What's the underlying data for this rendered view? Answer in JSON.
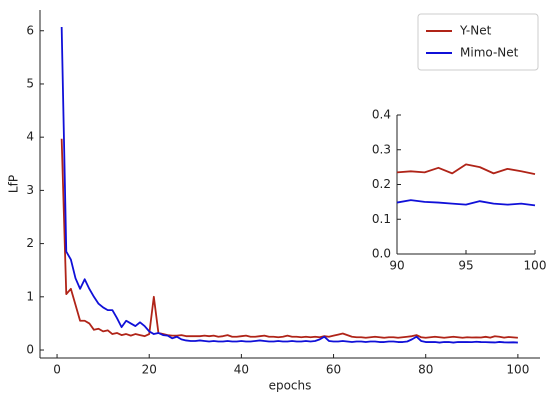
{
  "chart_data": [
    {
      "type": "line",
      "xlabel": "epochs",
      "ylabel": "LfP",
      "x": [
        1,
        2,
        3,
        4,
        5,
        6,
        7,
        8,
        9,
        10,
        11,
        12,
        13,
        14,
        15,
        16,
        17,
        18,
        19,
        20,
        21,
        22,
        23,
        24,
        25,
        26,
        27,
        28,
        29,
        30,
        31,
        32,
        33,
        34,
        35,
        36,
        37,
        38,
        39,
        40,
        41,
        42,
        43,
        44,
        45,
        46,
        47,
        48,
        49,
        50,
        51,
        52,
        53,
        54,
        55,
        56,
        57,
        58,
        59,
        60,
        61,
        62,
        63,
        64,
        65,
        66,
        67,
        68,
        69,
        70,
        71,
        72,
        73,
        74,
        75,
        76,
        77,
        78,
        79,
        80,
        81,
        82,
        83,
        84,
        85,
        86,
        87,
        88,
        89,
        90,
        91,
        92,
        93,
        94,
        95,
        96,
        97,
        98,
        99,
        100
      ],
      "series": [
        {
          "name": "Y-Net",
          "color": "#b02418",
          "values": [
            3.97,
            1.05,
            1.15,
            0.85,
            0.55,
            0.55,
            0.5,
            0.38,
            0.4,
            0.35,
            0.37,
            0.3,
            0.32,
            0.28,
            0.3,
            0.27,
            0.3,
            0.28,
            0.26,
            0.3,
            1.0,
            0.32,
            0.3,
            0.28,
            0.27,
            0.27,
            0.28,
            0.26,
            0.26,
            0.26,
            0.26,
            0.27,
            0.26,
            0.27,
            0.25,
            0.26,
            0.28,
            0.25,
            0.25,
            0.26,
            0.27,
            0.25,
            0.25,
            0.26,
            0.27,
            0.25,
            0.25,
            0.24,
            0.25,
            0.27,
            0.25,
            0.25,
            0.24,
            0.25,
            0.24,
            0.25,
            0.24,
            0.26,
            0.25,
            0.27,
            0.29,
            0.31,
            0.28,
            0.25,
            0.24,
            0.24,
            0.23,
            0.24,
            0.25,
            0.24,
            0.23,
            0.24,
            0.24,
            0.23,
            0.24,
            0.25,
            0.26,
            0.28,
            0.24,
            0.23,
            0.24,
            0.25,
            0.24,
            0.23,
            0.24,
            0.25,
            0.24,
            0.23,
            0.24,
            0.235,
            0.238,
            0.235,
            0.248,
            0.232,
            0.258,
            0.25,
            0.232,
            0.245,
            0.238,
            0.23
          ]
        },
        {
          "name": "Mimo-Net",
          "color": "#1010d8",
          "values": [
            6.07,
            1.85,
            1.7,
            1.35,
            1.15,
            1.33,
            1.15,
            1.0,
            0.87,
            0.8,
            0.75,
            0.75,
            0.6,
            0.43,
            0.55,
            0.5,
            0.45,
            0.52,
            0.45,
            0.35,
            0.3,
            0.32,
            0.28,
            0.27,
            0.22,
            0.25,
            0.2,
            0.18,
            0.17,
            0.17,
            0.18,
            0.17,
            0.16,
            0.17,
            0.16,
            0.16,
            0.17,
            0.16,
            0.16,
            0.17,
            0.16,
            0.16,
            0.17,
            0.18,
            0.17,
            0.16,
            0.16,
            0.17,
            0.16,
            0.16,
            0.17,
            0.16,
            0.16,
            0.17,
            0.16,
            0.17,
            0.2,
            0.25,
            0.17,
            0.16,
            0.16,
            0.17,
            0.16,
            0.15,
            0.16,
            0.16,
            0.15,
            0.16,
            0.16,
            0.15,
            0.15,
            0.16,
            0.16,
            0.15,
            0.15,
            0.16,
            0.2,
            0.25,
            0.17,
            0.15,
            0.15,
            0.15,
            0.14,
            0.15,
            0.15,
            0.14,
            0.15,
            0.15,
            0.15,
            0.148,
            0.155,
            0.15,
            0.148,
            0.145,
            0.142,
            0.152,
            0.145,
            0.142,
            0.145,
            0.14
          ]
        }
      ],
      "xlim": [
        -3.7,
        104.8
      ],
      "ylim": [
        -0.15,
        6.39
      ],
      "xticks": [
        0,
        20,
        40,
        60,
        80,
        100
      ],
      "yticks": [
        0,
        1,
        2,
        3,
        4,
        5,
        6
      ],
      "legend": "upper right"
    },
    {
      "type": "line",
      "x": [
        90,
        91,
        92,
        93,
        94,
        95,
        96,
        97,
        98,
        99,
        100
      ],
      "series": [
        {
          "name": "Y-Net",
          "color": "#b02418",
          "values": [
            0.235,
            0.238,
            0.235,
            0.248,
            0.232,
            0.258,
            0.25,
            0.232,
            0.245,
            0.238,
            0.23
          ]
        },
        {
          "name": "Mimo-Net",
          "color": "#1010d8",
          "values": [
            0.148,
            0.155,
            0.15,
            0.148,
            0.145,
            0.142,
            0.152,
            0.145,
            0.142,
            0.145,
            0.14
          ]
        }
      ],
      "xlim": [
        90,
        100
      ],
      "ylim": [
        0,
        0.4
      ],
      "xticks": [
        90,
        95,
        100
      ],
      "yticks": [
        {
          "value": 0,
          "label": "0.0"
        },
        0.1,
        0.2,
        0.3,
        0.4
      ]
    }
  ]
}
